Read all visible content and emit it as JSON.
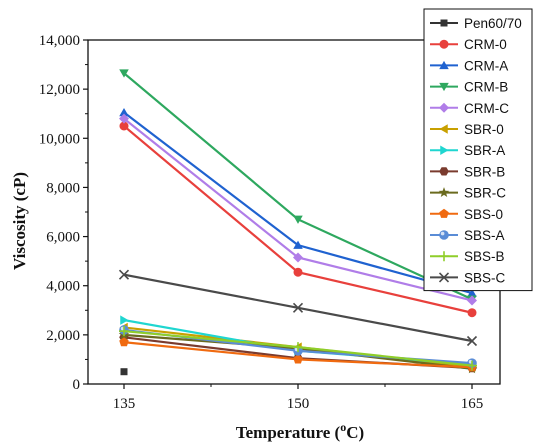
{
  "chart_data": {
    "type": "line",
    "x": [
      135,
      150,
      165
    ],
    "x_tick_labels": [
      "135",
      "150",
      "165"
    ],
    "y_tick_labels": [
      "0",
      "2,000",
      "4,000",
      "6,000",
      "8,000",
      "10,000",
      "12,000",
      "14,000"
    ],
    "ylim": [
      0,
      14000
    ],
    "xlabel_main": "Temperature (",
    "xlabel_sup": "o",
    "xlabel_tail": "C)",
    "ylabel": "Viscosity (cP)",
    "legend_position": "top-right",
    "grid": false,
    "series": [
      {
        "name": "Pen60/70",
        "color": "#333333",
        "marker": "square",
        "values": [
          500,
          null,
          null
        ]
      },
      {
        "name": "CRM-0",
        "color": "#e8403c",
        "marker": "circle",
        "values": [
          10500,
          4550,
          2900
        ]
      },
      {
        "name": "CRM-A",
        "color": "#1f62d0",
        "marker": "triangle-up",
        "values": [
          11050,
          5650,
          3700
        ]
      },
      {
        "name": "CRM-B",
        "color": "#2ea85f",
        "marker": "triangle-down",
        "values": [
          12650,
          6700,
          3450
        ]
      },
      {
        "name": "CRM-C",
        "color": "#b07de8",
        "marker": "diamond",
        "values": [
          10800,
          5150,
          3400
        ]
      },
      {
        "name": "SBR-0",
        "color": "#c8a000",
        "marker": "triangle-left",
        "values": [
          2300,
          1500,
          700
        ]
      },
      {
        "name": "SBR-A",
        "color": "#1fd6d0",
        "marker": "triangle-right",
        "values": [
          2600,
          1350,
          800
        ]
      },
      {
        "name": "SBR-B",
        "color": "#7a3b2e",
        "marker": "hexagon",
        "values": [
          1900,
          1050,
          650
        ]
      },
      {
        "name": "SBR-C",
        "color": "#6b6b1f",
        "marker": "star",
        "values": [
          2000,
          1450,
          620
        ]
      },
      {
        "name": "SBS-0",
        "color": "#f06a10",
        "marker": "pentagon",
        "values": [
          1700,
          1000,
          680
        ]
      },
      {
        "name": "SBS-A",
        "color": "#5a8cd6",
        "marker": "sphere",
        "values": [
          2200,
          1350,
          850
        ]
      },
      {
        "name": "SBS-B",
        "color": "#8fce2a",
        "marker": "plus",
        "values": [
          2150,
          1500,
          750
        ]
      },
      {
        "name": "SBS-C",
        "color": "#4a4a4a",
        "marker": "x",
        "values": [
          4450,
          3100,
          1750
        ]
      }
    ]
  }
}
